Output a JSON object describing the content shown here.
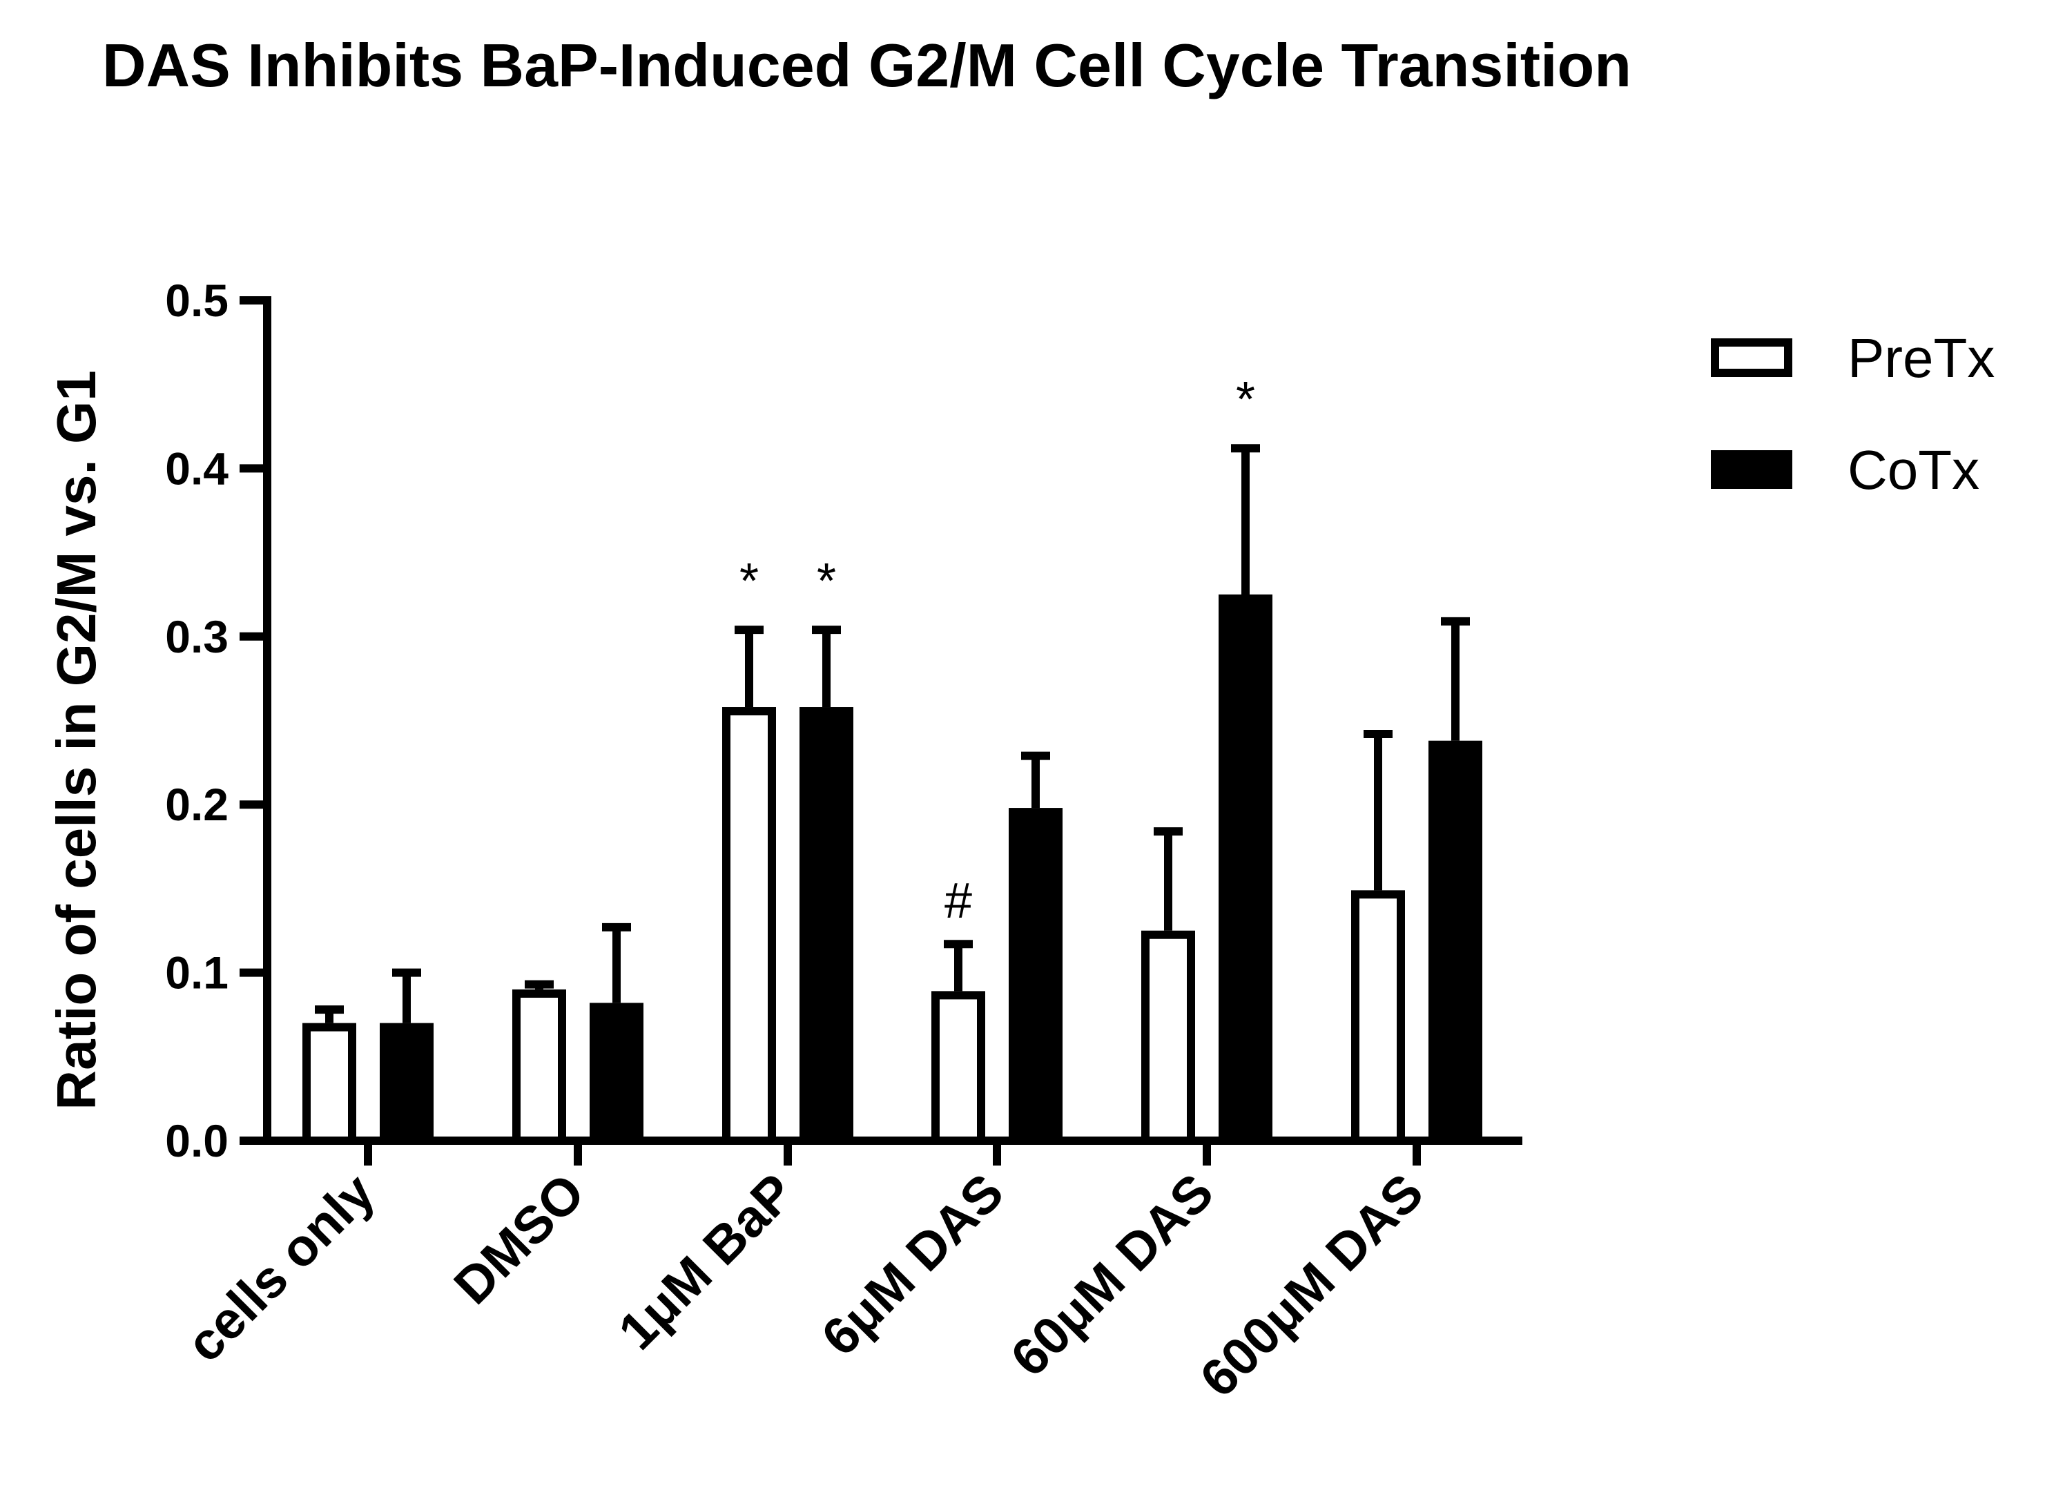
{
  "chart_data": {
    "type": "bar",
    "title": "DAS Inhibits BaP-Induced G2/M Cell Cycle Transition",
    "xlabel": "",
    "ylabel": "Ratio of cells in G2/M vs. G1",
    "ylim": [
      0,
      0.5
    ],
    "yticks": [
      "0.0",
      "0.1",
      "0.2",
      "0.3",
      "0.4",
      "0.5"
    ],
    "categories": [
      "cells only",
      "DMSO",
      "1μM BaP",
      "6μM DAS",
      "60μM DAS",
      "600μM DAS"
    ],
    "legend_position": "top-right",
    "series": [
      {
        "name": "PreTx",
        "style": "open",
        "values": [
          0.07,
          0.09,
          0.258,
          0.089,
          0.125,
          0.149
        ],
        "errors": [
          0.008,
          0.003,
          0.046,
          0.028,
          0.059,
          0.093
        ]
      },
      {
        "name": "CoTx",
        "style": "filled",
        "values": [
          0.07,
          0.082,
          0.258,
          0.198,
          0.325,
          0.238
        ],
        "errors": [
          0.03,
          0.045,
          0.046,
          0.031,
          0.087,
          0.071
        ]
      }
    ],
    "annotations": [
      {
        "category": 2,
        "series": 0,
        "text": "*"
      },
      {
        "category": 2,
        "series": 1,
        "text": "*"
      },
      {
        "category": 3,
        "series": 0,
        "text": "#"
      },
      {
        "category": 4,
        "series": 1,
        "text": "*"
      }
    ],
    "colors": {
      "bar_fill": "#000000",
      "open_fill": "#ffffff",
      "stroke": "#000000"
    }
  }
}
